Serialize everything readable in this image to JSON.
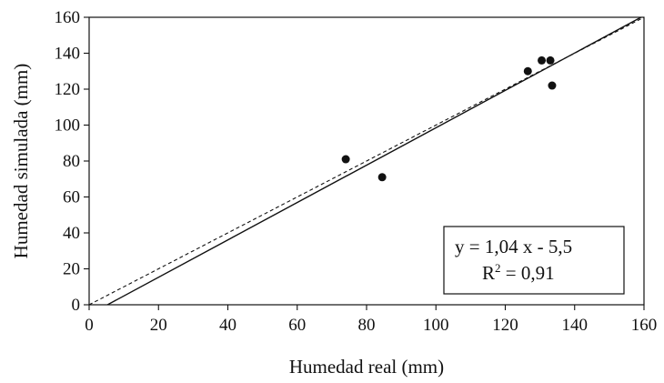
{
  "chart_data": {
    "type": "scatter",
    "xlabel": "Humedad real (mm)",
    "ylabel": "Humedad  simulada (mm)",
    "xlim": [
      0,
      160
    ],
    "ylim": [
      0,
      160
    ],
    "xticks": [
      "0",
      "20",
      "40",
      "60",
      "80",
      "100",
      "120",
      "140",
      "160"
    ],
    "yticks": [
      "0",
      "20",
      "40",
      "60",
      "80",
      "100",
      "120",
      "140",
      "160"
    ],
    "grid": false,
    "points": [
      {
        "x": 74,
        "y": 81
      },
      {
        "x": 84.5,
        "y": 71
      },
      {
        "x": 126.5,
        "y": 130
      },
      {
        "x": 130.5,
        "y": 136
      },
      {
        "x": 133,
        "y": 136
      },
      {
        "x": 133.5,
        "y": 122
      }
    ],
    "fit_line": {
      "slope": 1.04,
      "intercept": -5.5,
      "style": "solid"
    },
    "reference_line": {
      "slope": 1,
      "intercept": 0,
      "style": "dashed"
    },
    "annotation": {
      "equation": "y = 1,04 x - 5,5",
      "r2_prefix": "R",
      "r2_sup": "2",
      "r2_suffix": " = 0,91",
      "placement": "bottom-right"
    }
  },
  "colors": {
    "ink": "#111111",
    "background": "#ffffff"
  }
}
